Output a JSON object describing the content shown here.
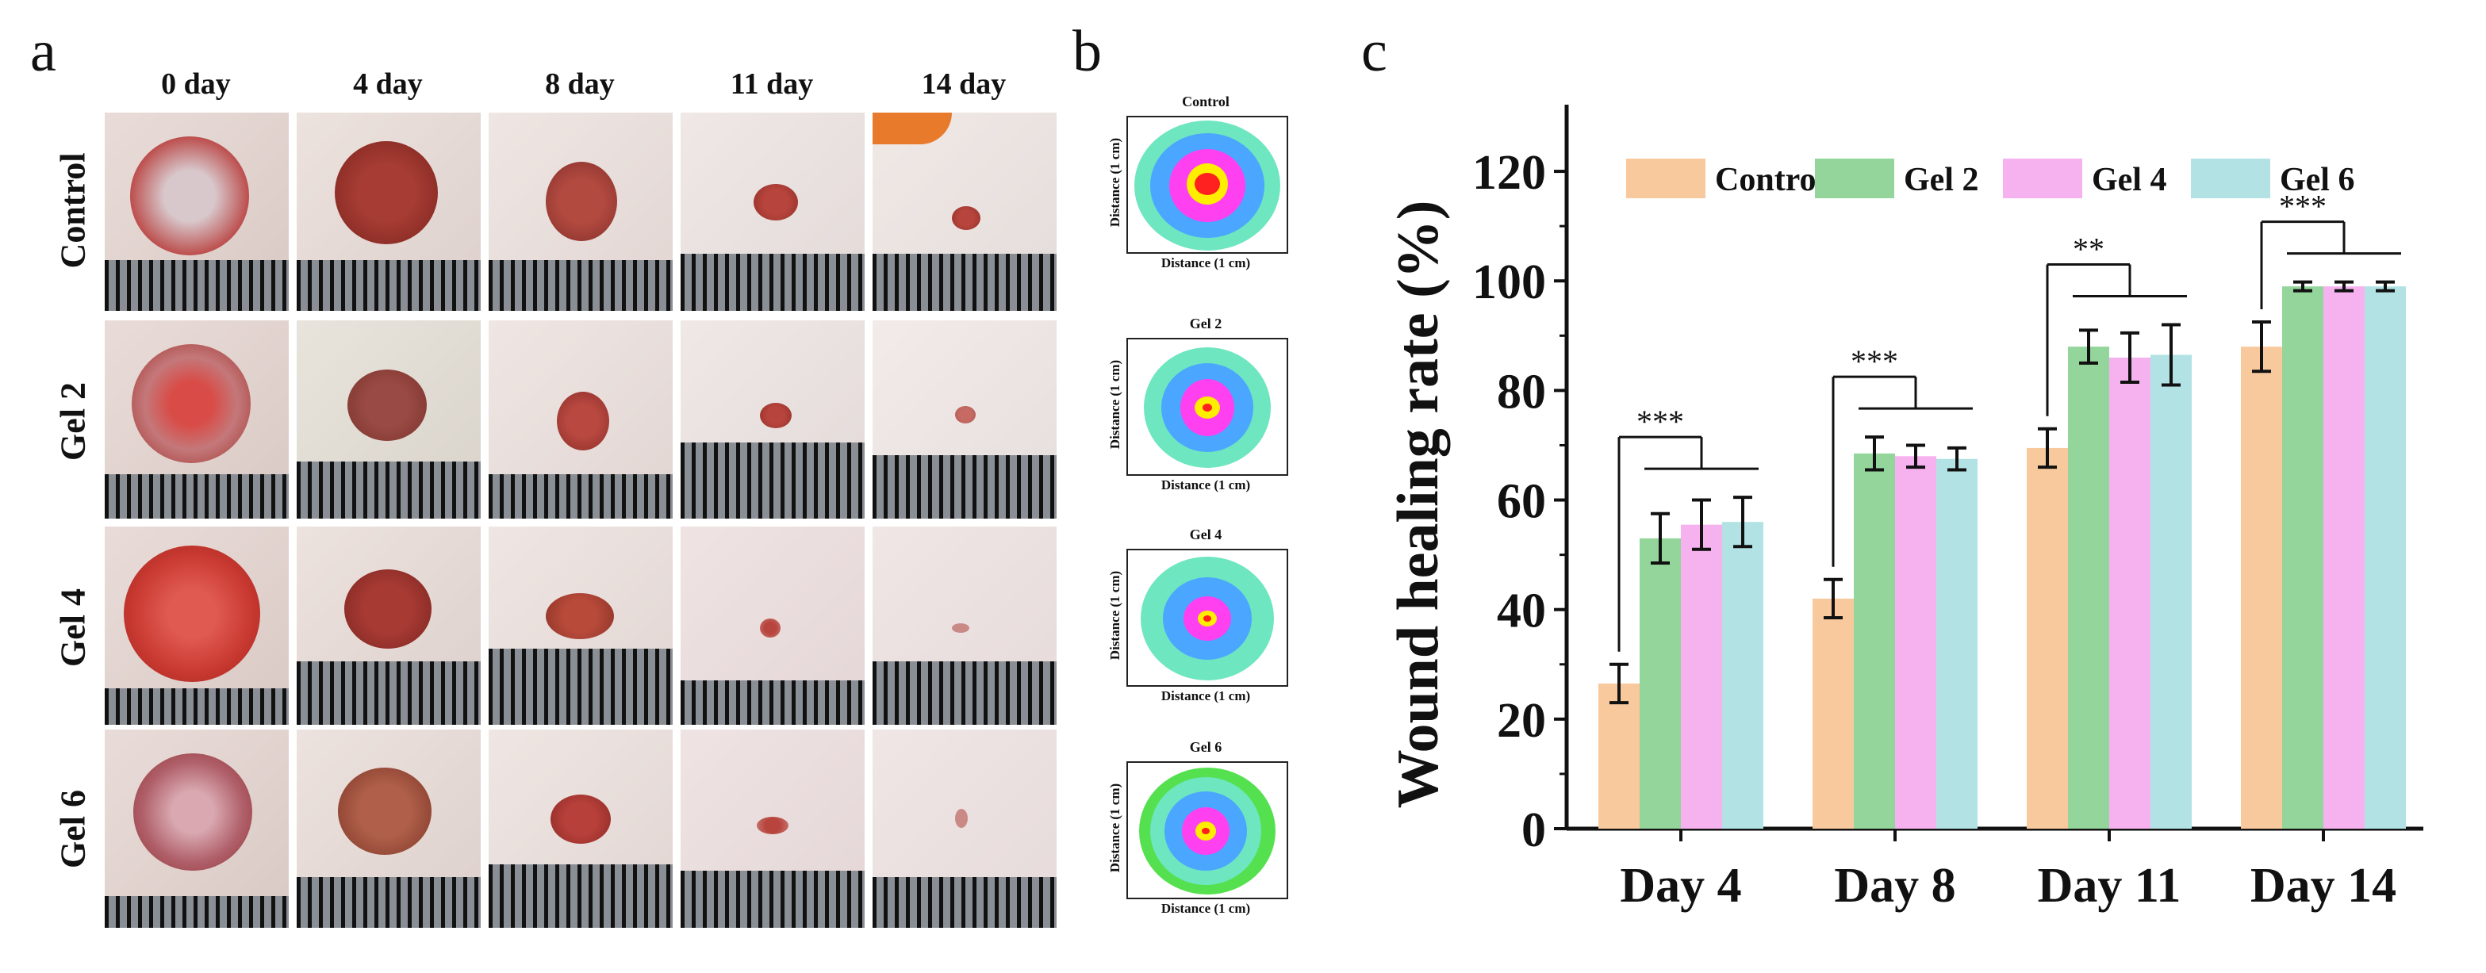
{
  "panels": {
    "a": "a",
    "b": "b",
    "c": "c"
  },
  "photo_grid": {
    "days": [
      "0 day",
      "4 day",
      "8 day",
      "11 day",
      "14 day"
    ],
    "groups": [
      "Control",
      "Gel 2",
      "Gel 4",
      "Gel 6"
    ]
  },
  "heatmaps": {
    "items": [
      {
        "title": "Control"
      },
      {
        "title": "Gel 2"
      },
      {
        "title": "Gel 4"
      },
      {
        "title": "Gel 6"
      }
    ],
    "xlabel": "Distance (1 cm)",
    "ylabel": "Distance (1 cm)"
  },
  "chart_data": {
    "type": "bar",
    "title": "",
    "xlabel": "",
    "ylabel": "Wound healing rate (%)",
    "ylim": [
      0,
      130
    ],
    "yticks": [
      0,
      20,
      40,
      60,
      80,
      100,
      120
    ],
    "categories": [
      "Day 4",
      "Day 8",
      "Day 11",
      "Day 14"
    ],
    "series": [
      {
        "name": "Control",
        "color": "#f9c99e",
        "values": [
          26.5,
          42,
          69.5,
          88
        ],
        "errors": [
          3.5,
          3.5,
          3.5,
          4.5
        ]
      },
      {
        "name": "Gel 2",
        "color": "#93d59a",
        "values": [
          53,
          68.5,
          88,
          99
        ],
        "errors": [
          4.5,
          3,
          3,
          0.8
        ]
      },
      {
        "name": "Gel 4",
        "color": "#f6b2ef",
        "values": [
          55.5,
          68,
          86,
          99
        ],
        "errors": [
          4.5,
          2,
          4.5,
          0.8
        ]
      },
      {
        "name": "Gel 6",
        "color": "#b2e2e4",
        "values": [
          56,
          67.5,
          86.5,
          99
        ],
        "errors": [
          4.5,
          2,
          5.5,
          0.8
        ]
      }
    ],
    "significance": [
      "***",
      "***",
      "**",
      "***"
    ],
    "legend_position": "top"
  }
}
